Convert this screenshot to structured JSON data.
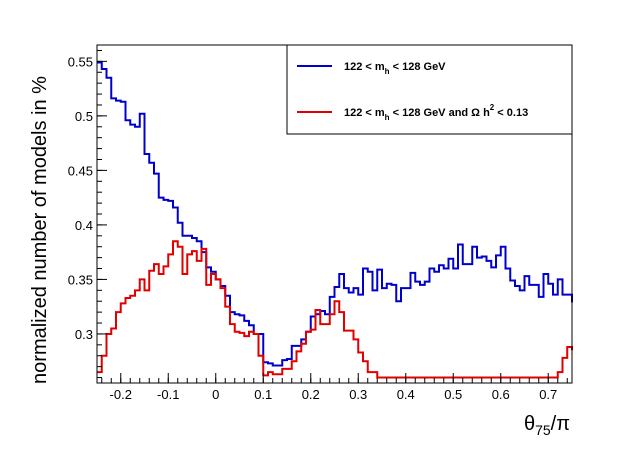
{
  "chart_data": {
    "type": "line",
    "drawstyle": "steps",
    "ylabel": "normalized number of models in %",
    "xlabel": "θ75/π",
    "xlim": [
      -0.25,
      0.75
    ],
    "ylim": [
      0.255,
      0.565
    ],
    "xticks": [
      -0.2,
      -0.1,
      0,
      0.1,
      0.2,
      0.3,
      0.4,
      0.5,
      0.6,
      0.7
    ],
    "xtick_labels": [
      "-0.2",
      "-0.1",
      "0",
      "0.1",
      "0.2",
      "0.3",
      "0.4",
      "0.5",
      "0.6",
      "0.7"
    ],
    "yticks": [
      0.3,
      0.35,
      0.4,
      0.45,
      0.5,
      0.55
    ],
    "ytick_labels": [
      "0.3",
      "0.35",
      "0.4",
      "0.45",
      "0.5",
      "0.55"
    ],
    "grid": false,
    "legend_position": "top-right",
    "legend": [
      {
        "parts": [
          "122 < m",
          "h",
          " < 128 GeV"
        ],
        "color": "#0000cc"
      },
      {
        "parts": [
          "122 < m",
          "h",
          " < 128 GeV and   Ω h",
          "2",
          " < 0.13"
        ],
        "color": "#e00000"
      }
    ],
    "bin_width": 0.01,
    "x_start": -0.25,
    "series": [
      {
        "color": "#0000cc",
        "values": [
          0.549,
          0.543,
          0.535,
          0.516,
          0.514,
          0.513,
          0.496,
          0.492,
          0.49,
          0.502,
          0.465,
          0.457,
          0.447,
          0.425,
          0.423,
          0.422,
          0.416,
          0.402,
          0.39,
          0.39,
          0.388,
          0.385,
          0.375,
          0.361,
          0.357,
          0.35,
          0.344,
          0.335,
          0.32,
          0.318,
          0.317,
          0.312,
          0.308,
          0.3,
          0.3,
          0.274,
          0.273,
          0.271,
          0.271,
          0.276,
          0.277,
          0.289,
          0.289,
          0.295,
          0.302,
          0.316,
          0.318,
          0.321,
          0.318,
          0.334,
          0.343,
          0.355,
          0.342,
          0.338,
          0.342,
          0.336,
          0.36,
          0.357,
          0.34,
          0.359,
          0.342,
          0.346,
          0.345,
          0.33,
          0.342,
          0.342,
          0.356,
          0.348,
          0.345,
          0.348,
          0.36,
          0.357,
          0.363,
          0.36,
          0.369,
          0.36,
          0.382,
          0.364,
          0.364,
          0.38,
          0.37,
          0.371,
          0.367,
          0.361,
          0.372,
          0.38,
          0.36,
          0.349,
          0.344,
          0.34,
          0.353,
          0.345,
          0.345,
          0.334,
          0.355,
          0.346,
          0.336,
          0.35,
          0.336,
          0.336,
          0.329
        ]
      },
      {
        "color": "#e00000",
        "values": [
          0.265,
          0.28,
          0.3,
          0.305,
          0.32,
          0.328,
          0.333,
          0.335,
          0.34,
          0.35,
          0.34,
          0.358,
          0.364,
          0.355,
          0.362,
          0.373,
          0.385,
          0.38,
          0.355,
          0.373,
          0.376,
          0.367,
          0.378,
          0.345,
          0.355,
          0.35,
          0.342,
          0.325,
          0.309,
          0.302,
          0.301,
          0.298,
          0.302,
          0.3,
          0.28,
          0.262,
          0.265,
          0.263,
          0.263,
          0.268,
          0.268,
          0.275,
          0.284,
          0.291,
          0.302,
          0.304,
          0.322,
          0.309,
          0.309,
          0.318,
          0.33,
          0.32,
          0.303,
          0.303,
          0.295,
          0.283,
          0.275,
          0.265,
          0.265,
          0.26,
          0.26,
          0.26,
          0.26,
          0.26,
          0.26,
          0.26,
          0.26,
          0.26,
          0.26,
          0.26,
          0.26,
          0.26,
          0.26,
          0.26,
          0.26,
          0.26,
          0.26,
          0.26,
          0.26,
          0.26,
          0.26,
          0.26,
          0.26,
          0.26,
          0.26,
          0.26,
          0.26,
          0.26,
          0.26,
          0.26,
          0.26,
          0.26,
          0.26,
          0.26,
          0.26,
          0.26,
          0.26,
          0.265,
          0.278,
          0.288,
          0.285
        ]
      }
    ]
  }
}
